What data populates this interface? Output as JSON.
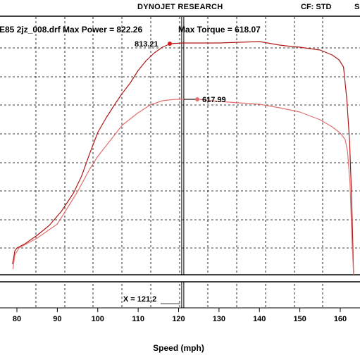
{
  "header": {
    "title": "DYNOJET RESEARCH",
    "cf_label": "CF: STD",
    "cf_extra": "S"
  },
  "run_info": {
    "run_line": "E85 2jz_008.drf Max Power = 822.26",
    "max_torque_text": "Max Torque = 618.07"
  },
  "chart_data": {
    "type": "line",
    "xlabel": "Speed (mph)",
    "xlim": [
      76,
      167
    ],
    "x_ticks": [
      80,
      90,
      100,
      110,
      120,
      130,
      140,
      150,
      160
    ],
    "cursor_x_label": "X = 121.2",
    "cursor_x": 121.2,
    "annotations": [
      {
        "label": "813.21",
        "series": "power"
      },
      {
        "label": "617.99",
        "series": "torque"
      }
    ],
    "series": [
      {
        "id": "power",
        "color": "#b01818",
        "points": [
          [
            78.9,
            375
          ],
          [
            79.2,
            366
          ],
          [
            79.5,
            356
          ],
          [
            80,
            352
          ],
          [
            82,
            346
          ],
          [
            85,
            334
          ],
          [
            88,
            320
          ],
          [
            91,
            300
          ],
          [
            94,
            274
          ],
          [
            96,
            250
          ],
          [
            98,
            218
          ],
          [
            100,
            188
          ],
          [
            102,
            168
          ],
          [
            104,
            150
          ],
          [
            106,
            133
          ],
          [
            108,
            118
          ],
          [
            110,
            100
          ],
          [
            112,
            86
          ],
          [
            114,
            75
          ],
          [
            116,
            67
          ],
          [
            118,
            62
          ],
          [
            121,
            61
          ],
          [
            125,
            61
          ],
          [
            130,
            61
          ],
          [
            135,
            60
          ],
          [
            140,
            59
          ],
          [
            145,
            64
          ],
          [
            148,
            66
          ],
          [
            150,
            67
          ],
          [
            155,
            71
          ],
          [
            158,
            78
          ],
          [
            159.7,
            85
          ],
          [
            160.8,
            95
          ],
          [
            161.6,
            140
          ],
          [
            162.3,
            200
          ],
          [
            162.8,
            280
          ],
          [
            163.3,
            390
          ]
        ]
      },
      {
        "id": "torque",
        "color": "#e07070",
        "points": [
          [
            79,
            382
          ],
          [
            79.5,
            362
          ],
          [
            80.5,
            352
          ],
          [
            85,
            338
          ],
          [
            90,
            318
          ],
          [
            95,
            272
          ],
          [
            98,
            240
          ],
          [
            100,
            222
          ],
          [
            103,
            200
          ],
          [
            106,
            178
          ],
          [
            110,
            160
          ],
          [
            113,
            149
          ],
          [
            116,
            143
          ],
          [
            119,
            141
          ],
          [
            121,
            141
          ],
          [
            125,
            141
          ],
          [
            130,
            144
          ],
          [
            135,
            146
          ],
          [
            140,
            148
          ],
          [
            145,
            153
          ],
          [
            150,
            159
          ],
          [
            155,
            170
          ],
          [
            158,
            180
          ],
          [
            160,
            189
          ],
          [
            161.2,
            198
          ],
          [
            161.8,
            215
          ],
          [
            162.4,
            260
          ],
          [
            162.9,
            340
          ],
          [
            163.3,
            390
          ]
        ]
      }
    ]
  }
}
